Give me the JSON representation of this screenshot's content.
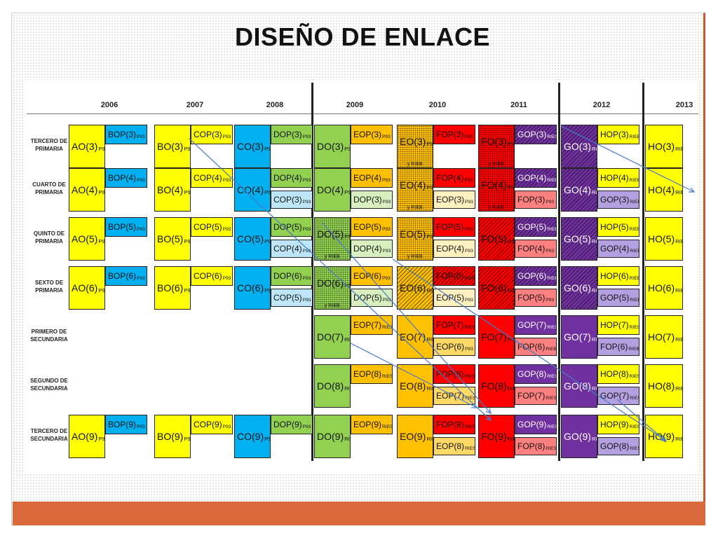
{
  "title": "DISEÑO DE ENLACE",
  "years": [
    "2006",
    "2007",
    "2008",
    "2009",
    "2010",
    "2011",
    "2012",
    "2013"
  ],
  "row_labels": [
    "TERCERO DE PRIMARIA",
    "CUARTO DE PRIMARIA",
    "QUINTO DE PRIMARIA",
    "SEXTO DE PRIMARIA",
    "PRIMERO DE SECUNDARIA",
    "SEGUNDO DE SECUNDARIA",
    "TERCERO DE SECUNDARIA"
  ],
  "colors": {
    "yellow": "#ffff00",
    "blue": "#00b0f0",
    "green": "#92d050",
    "orange": "#ffc000",
    "red": "#ff0000",
    "lightred": "#ff8080",
    "purple": "#7030a0",
    "lightpurple": "#b4a0e0",
    "palegreen": "#d8f0c0",
    "paleyellow": "#fff2c0",
    "paleblue": "#bde7f8",
    "lightorange": "#ffd966"
  },
  "cells": [
    {
      "t": "AO(3)",
      "s": "P93",
      "c": "yellow",
      "r": 0,
      "col": 0,
      "k": "main"
    },
    {
      "t": "BOP(3)",
      "s": "P93",
      "c": "blue",
      "r": 0,
      "col": 0,
      "k": "top"
    },
    {
      "t": "BO(3)",
      "s": "P93",
      "c": "yellow",
      "r": 0,
      "col": 1,
      "k": "main"
    },
    {
      "t": "COP(3)",
      "s": "P93",
      "c": "yellow",
      "r": 0,
      "col": 1,
      "k": "top"
    },
    {
      "t": "CO(3)",
      "s": "P93",
      "c": "blue",
      "r": 0,
      "col": 2,
      "k": "main"
    },
    {
      "t": "DOP(3)",
      "s": "P93",
      "c": "green",
      "r": 0,
      "col": 2,
      "k": "top"
    },
    {
      "t": "DO(3)",
      "s": "P93",
      "c": "green",
      "r": 0,
      "col": 3,
      "k": "main"
    },
    {
      "t": "EOP(3)",
      "s": "P93",
      "c": "orange",
      "r": 0,
      "col": 3,
      "k": "top"
    },
    {
      "t": "EO(3)",
      "s": "P93",
      "s2": "y RIEB",
      "c": "orange",
      "r": 0,
      "col": 4,
      "k": "main",
      "p": "dotted"
    },
    {
      "t": "FOP(3)",
      "s": "P93",
      "c": "red",
      "r": 0,
      "col": 4,
      "k": "top"
    },
    {
      "t": "FO(3)",
      "s": "P93",
      "s2": "y RIEB",
      "c": "red",
      "r": 0,
      "col": 5,
      "k": "main",
      "p": "dotted"
    },
    {
      "t": "GOP(3)",
      "s": "RIES",
      "c": "purple",
      "r": 0,
      "col": 5,
      "k": "top",
      "p": "hatch"
    },
    {
      "t": "GO(3)",
      "s": "RIEB",
      "c": "purple",
      "r": 0,
      "col": 6,
      "k": "main",
      "p": "hatch"
    },
    {
      "t": "HOP(3)",
      "s": "RIEB",
      "c": "yellow",
      "r": 0,
      "col": 6,
      "k": "top"
    },
    {
      "t": "HO(3)",
      "s": "RIEB",
      "c": "yellow",
      "r": 0,
      "col": 7,
      "k": "main"
    },
    {
      "t": "AO(4)",
      "s": "P93",
      "c": "yellow",
      "r": 1,
      "col": 0,
      "k": "main"
    },
    {
      "t": "BOP(4)",
      "s": "P93",
      "c": "blue",
      "r": 1,
      "col": 0,
      "k": "top"
    },
    {
      "t": "BO(4)",
      "s": "P93",
      "c": "yellow",
      "r": 1,
      "col": 1,
      "k": "main"
    },
    {
      "t": "COP(4)",
      "s": "P93",
      "c": "yellow",
      "r": 1,
      "col": 1,
      "k": "top"
    },
    {
      "t": "CO(4)",
      "s": "P93",
      "c": "blue",
      "r": 1,
      "col": 2,
      "k": "main"
    },
    {
      "t": "DOP(4)",
      "s": "P93",
      "c": "green",
      "r": 1,
      "col": 2,
      "k": "top"
    },
    {
      "t": "COP(3)",
      "s": "P93",
      "c": "paleblue",
      "r": 1,
      "col": 2,
      "k": "bot"
    },
    {
      "t": "DO(4)",
      "s": "P93",
      "c": "green",
      "r": 1,
      "col": 3,
      "k": "main"
    },
    {
      "t": "EOP(4)",
      "s": "P93",
      "c": "orange",
      "r": 1,
      "col": 3,
      "k": "top"
    },
    {
      "t": "DOP(3)",
      "s": "P93",
      "c": "palegreen",
      "r": 1,
      "col": 3,
      "k": "bot"
    },
    {
      "t": "EO(4)",
      "s": "P93",
      "s2": "y RIEB",
      "c": "orange",
      "r": 1,
      "col": 4,
      "k": "main",
      "p": "dotted"
    },
    {
      "t": "FOP(4)",
      "s": "P93",
      "c": "red",
      "r": 1,
      "col": 4,
      "k": "top"
    },
    {
      "t": "EOP(3)",
      "s": "P93",
      "c": "paleyellow",
      "r": 1,
      "col": 4,
      "k": "bot"
    },
    {
      "t": "FO(4)",
      "s": "P93",
      "s2": "y RIEB",
      "c": "red",
      "r": 1,
      "col": 5,
      "k": "main",
      "p": "dotted"
    },
    {
      "t": "GOP(4)",
      "s": "RIEB",
      "c": "purple",
      "r": 1,
      "col": 5,
      "k": "top",
      "p": "hatch"
    },
    {
      "t": "FOP(3)",
      "s": "P93",
      "c": "lightred",
      "r": 1,
      "col": 5,
      "k": "bot"
    },
    {
      "t": "GO(4)",
      "s": "RIEB",
      "c": "purple",
      "r": 1,
      "col": 6,
      "k": "main",
      "p": "hatch"
    },
    {
      "t": "HOP(4)",
      "s": "RIEB",
      "c": "yellow",
      "r": 1,
      "col": 6,
      "k": "top"
    },
    {
      "t": "GOP(3)",
      "s": "RIEB",
      "c": "lightpurple",
      "r": 1,
      "col": 6,
      "k": "bot"
    },
    {
      "t": "HO(4)",
      "s": "RIEB",
      "c": "yellow",
      "r": 1,
      "col": 7,
      "k": "main"
    },
    {
      "t": "AO(5)",
      "s": "P93",
      "c": "yellow",
      "r": 2,
      "col": 0,
      "k": "main"
    },
    {
      "t": "BOP(5)",
      "s": "P93",
      "c": "blue",
      "r": 2,
      "col": 0,
      "k": "top"
    },
    {
      "t": "BO(5)",
      "s": "P93",
      "c": "yellow",
      "r": 2,
      "col": 1,
      "k": "main"
    },
    {
      "t": "COP(5)",
      "s": "P93",
      "c": "yellow",
      "r": 2,
      "col": 1,
      "k": "top"
    },
    {
      "t": "CO(5)",
      "s": "P93",
      "c": "blue",
      "r": 2,
      "col": 2,
      "k": "main"
    },
    {
      "t": "DOP(5)",
      "s": "P93",
      "c": "green",
      "r": 2,
      "col": 2,
      "k": "top"
    },
    {
      "t": "COP(4)",
      "s": "P93",
      "c": "paleblue",
      "r": 2,
      "col": 2,
      "k": "bot"
    },
    {
      "t": "DO(5)",
      "s": "P93",
      "s2": "y RIEB",
      "c": "green",
      "r": 2,
      "col": 3,
      "k": "main",
      "p": "dotted"
    },
    {
      "t": "EOP(5)",
      "s": "P93",
      "c": "orange",
      "r": 2,
      "col": 3,
      "k": "top"
    },
    {
      "t": "DOP(4)",
      "s": "P93",
      "c": "palegreen",
      "r": 2,
      "col": 3,
      "k": "bot"
    },
    {
      "t": "EO(5)",
      "s": "P93",
      "s2": "y RIEB",
      "c": "orange",
      "r": 2,
      "col": 4,
      "k": "main",
      "p": "dotted"
    },
    {
      "t": "FOP(5)",
      "s": "P93",
      "c": "red",
      "r": 2,
      "col": 4,
      "k": "top"
    },
    {
      "t": "EOP(4)",
      "s": "P93",
      "c": "paleyellow",
      "r": 2,
      "col": 4,
      "k": "bot"
    },
    {
      "t": "FO(5)",
      "s": "RIEB",
      "c": "red",
      "r": 2,
      "col": 5,
      "k": "main",
      "p": "hatch"
    },
    {
      "t": "GOP(5)",
      "s": "RIEB",
      "c": "purple",
      "r": 2,
      "col": 5,
      "k": "top",
      "p": "hatch"
    },
    {
      "t": "FOP(4)",
      "s": "P93",
      "c": "lightred",
      "r": 2,
      "col": 5,
      "k": "bot"
    },
    {
      "t": "GO(5)",
      "s": "RIEB",
      "c": "purple",
      "r": 2,
      "col": 6,
      "k": "main",
      "p": "hatch"
    },
    {
      "t": "HOP(5)",
      "s": "RIEB",
      "c": "yellow",
      "r": 2,
      "col": 6,
      "k": "top"
    },
    {
      "t": "GOP(4)",
      "s": "RIEB",
      "c": "lightpurple",
      "r": 2,
      "col": 6,
      "k": "bot"
    },
    {
      "t": "HO(5)",
      "s": "RIEB",
      "c": "yellow",
      "r": 2,
      "col": 7,
      "k": "main"
    },
    {
      "t": "AO(6)",
      "s": "P93",
      "c": "yellow",
      "r": 3,
      "col": 0,
      "k": "main"
    },
    {
      "t": "BOP(6)",
      "s": "P93",
      "c": "blue",
      "r": 3,
      "col": 0,
      "k": "top"
    },
    {
      "t": "BO(6)",
      "s": "P93",
      "c": "yellow",
      "r": 3,
      "col": 1,
      "k": "main"
    },
    {
      "t": "COP(6)",
      "s": "P93",
      "c": "yellow",
      "r": 3,
      "col": 1,
      "k": "top"
    },
    {
      "t": "CO(6)",
      "s": "P93",
      "c": "blue",
      "r": 3,
      "col": 2,
      "k": "main"
    },
    {
      "t": "DOP(6)",
      "s": "P93",
      "c": "green",
      "r": 3,
      "col": 2,
      "k": "top"
    },
    {
      "t": "COP(5)",
      "s": "P93",
      "c": "paleblue",
      "r": 3,
      "col": 2,
      "k": "bot"
    },
    {
      "t": "DO(6)",
      "s": "P93",
      "s2": "y RIEB",
      "c": "green",
      "r": 3,
      "col": 3,
      "k": "main",
      "p": "dotted"
    },
    {
      "t": "EOP(6)",
      "s": "P93",
      "c": "orange",
      "r": 3,
      "col": 3,
      "k": "top"
    },
    {
      "t": "DOP(5)",
      "s": "P93",
      "c": "palegreen",
      "r": 3,
      "col": 3,
      "k": "bot"
    },
    {
      "t": "EO(6)",
      "s": "RIEB",
      "c": "orange",
      "r": 3,
      "col": 4,
      "k": "main",
      "p": "hatch"
    },
    {
      "t": "FOP(6)",
      "s": "RIEB",
      "c": "red",
      "r": 3,
      "col": 4,
      "k": "top",
      "p": "hatch"
    },
    {
      "t": "EOP(5)",
      "s": "P93",
      "c": "paleyellow",
      "r": 3,
      "col": 4,
      "k": "bot"
    },
    {
      "t": "FO(6)",
      "s": "RIEB",
      "c": "red",
      "r": 3,
      "col": 5,
      "k": "main",
      "p": "hatch"
    },
    {
      "t": "GOP(6)",
      "s": "RIEB",
      "c": "purple",
      "r": 3,
      "col": 5,
      "k": "top",
      "p": "hatch"
    },
    {
      "t": "FOP(5)",
      "s": "P93",
      "c": "lightred",
      "r": 3,
      "col": 5,
      "k": "bot"
    },
    {
      "t": "GO(6)",
      "s": "RIEB",
      "c": "purple",
      "r": 3,
      "col": 6,
      "k": "main",
      "p": "hatch"
    },
    {
      "t": "HOP(6)",
      "s": "RIEB",
      "c": "yellow",
      "r": 3,
      "col": 6,
      "k": "top"
    },
    {
      "t": "GOP(5)",
      "s": "RIEB",
      "c": "lightpurple",
      "r": 3,
      "col": 6,
      "k": "bot"
    },
    {
      "t": "HO(6)",
      "s": "RIEB",
      "c": "yellow",
      "r": 3,
      "col": 7,
      "k": "main"
    },
    {
      "t": "DO(7)",
      "s": "RIES",
      "c": "green",
      "r": 4,
      "col": 3,
      "k": "main"
    },
    {
      "t": "EOP(7)",
      "s": "RIES",
      "c": "orange",
      "r": 4,
      "col": 3,
      "k": "top"
    },
    {
      "t": "EO(7)",
      "s": "RIES",
      "c": "orange",
      "r": 4,
      "col": 4,
      "k": "main"
    },
    {
      "t": "FOP(7)",
      "s": "RIES",
      "c": "red",
      "r": 4,
      "col": 4,
      "k": "top"
    },
    {
      "t": "EOP(6)",
      "s": "P93",
      "c": "lightorange",
      "r": 4,
      "col": 4,
      "k": "bot"
    },
    {
      "t": "FO(7)",
      "s": "RIES",
      "c": "red",
      "r": 4,
      "col": 5,
      "k": "main"
    },
    {
      "t": "GOP(7)",
      "s": "RIES",
      "c": "purple",
      "r": 4,
      "col": 5,
      "k": "top"
    },
    {
      "t": "FOP(6)",
      "s": "RIEB",
      "c": "lightred",
      "r": 4,
      "col": 5,
      "k": "bot"
    },
    {
      "t": "GO(7)",
      "s": "RIES",
      "c": "purple",
      "r": 4,
      "col": 6,
      "k": "main"
    },
    {
      "t": "HOP(7)",
      "s": "RIES",
      "c": "yellow",
      "r": 4,
      "col": 6,
      "k": "top"
    },
    {
      "t": "FOP(6)",
      "s": "RIEB",
      "c": "lightpurple",
      "r": 4,
      "col": 6,
      "k": "bot"
    },
    {
      "t": "HO(7)",
      "s": "RIES",
      "c": "yellow",
      "r": 4,
      "col": 7,
      "k": "main"
    },
    {
      "t": "DO(8)",
      "s": "RIES",
      "c": "green",
      "r": 5,
      "col": 3,
      "k": "main"
    },
    {
      "t": "EOP(8)",
      "s": "RIES",
      "c": "orange",
      "r": 5,
      "col": 3,
      "k": "top"
    },
    {
      "t": "EO(8)",
      "s": "RIES",
      "c": "orange",
      "r": 5,
      "col": 4,
      "k": "main"
    },
    {
      "t": "FOP(8)",
      "s": "RIES",
      "c": "red",
      "r": 5,
      "col": 4,
      "k": "top"
    },
    {
      "t": "EOP(7)",
      "s": "RIES",
      "c": "lightorange",
      "r": 5,
      "col": 4,
      "k": "bot"
    },
    {
      "t": "FO(8)",
      "s": "RIES",
      "c": "red",
      "r": 5,
      "col": 5,
      "k": "main"
    },
    {
      "t": "GOP(8)",
      "s": "RIES",
      "c": "purple",
      "r": 5,
      "col": 5,
      "k": "top"
    },
    {
      "t": "FOP(7)",
      "s": "RIES",
      "c": "lightred",
      "r": 5,
      "col": 5,
      "k": "bot"
    },
    {
      "t": "GO(8)",
      "s": "RIES",
      "c": "purple",
      "r": 5,
      "col": 6,
      "k": "main"
    },
    {
      "t": "HOP(8)",
      "s": "RIES",
      "c": "yellow",
      "r": 5,
      "col": 6,
      "k": "top"
    },
    {
      "t": "GOP(7)",
      "s": "RIES",
      "c": "lightpurple",
      "r": 5,
      "col": 6,
      "k": "bot"
    },
    {
      "t": "HO(8)",
      "s": "RIES",
      "c": "yellow",
      "r": 5,
      "col": 7,
      "k": "main"
    },
    {
      "t": "AO(9)",
      "s": "P93",
      "c": "yellow",
      "r": 6,
      "col": 0,
      "k": "main"
    },
    {
      "t": "BOP(9)",
      "s": "P93",
      "c": "blue",
      "r": 6,
      "col": 0,
      "k": "top"
    },
    {
      "t": "BO(9)",
      "s": "P93",
      "c": "yellow",
      "r": 6,
      "col": 1,
      "k": "main"
    },
    {
      "t": "COP(9)",
      "s": "P93",
      "c": "yellow",
      "r": 6,
      "col": 1,
      "k": "top"
    },
    {
      "t": "CO(9)",
      "s": "P93",
      "c": "blue",
      "r": 6,
      "col": 2,
      "k": "main"
    },
    {
      "t": "DOP(9)",
      "s": "P93",
      "c": "green",
      "r": 6,
      "col": 2,
      "k": "top"
    },
    {
      "t": "DO(9)",
      "s": "RIES",
      "c": "green",
      "r": 6,
      "col": 3,
      "k": "main"
    },
    {
      "t": "EOP(9)",
      "s": "RIES",
      "c": "orange",
      "r": 6,
      "col": 3,
      "k": "top"
    },
    {
      "t": "EO(9)",
      "s": "RIES",
      "c": "orange",
      "r": 6,
      "col": 4,
      "k": "main"
    },
    {
      "t": "FOP(9)",
      "s": "RIES",
      "c": "red",
      "r": 6,
      "col": 4,
      "k": "top"
    },
    {
      "t": "EOP(8)",
      "s": "RIES",
      "c": "lightorange",
      "r": 6,
      "col": 4,
      "k": "bot"
    },
    {
      "t": "FO(9)",
      "s": "RIES",
      "c": "red",
      "r": 6,
      "col": 5,
      "k": "main"
    },
    {
      "t": "GOP(9)",
      "s": "RIES",
      "c": "purple",
      "r": 6,
      "col": 5,
      "k": "top"
    },
    {
      "t": "FOP(8)",
      "s": "RIES",
      "c": "lightred",
      "r": 6,
      "col": 5,
      "k": "bot"
    },
    {
      "t": "GO(9)",
      "s": "RIES",
      "c": "purple",
      "r": 6,
      "col": 6,
      "k": "main"
    },
    {
      "t": "HOP(9)",
      "s": "RIES",
      "c": "yellow",
      "r": 6,
      "col": 6,
      "k": "top"
    },
    {
      "t": "GOP(8)",
      "s": "RIES",
      "c": "lightpurple",
      "r": 6,
      "col": 6,
      "k": "bot"
    },
    {
      "t": "HO(9)",
      "s": "RIES",
      "c": "yellow",
      "r": 6,
      "col": 7,
      "k": "main"
    }
  ]
}
